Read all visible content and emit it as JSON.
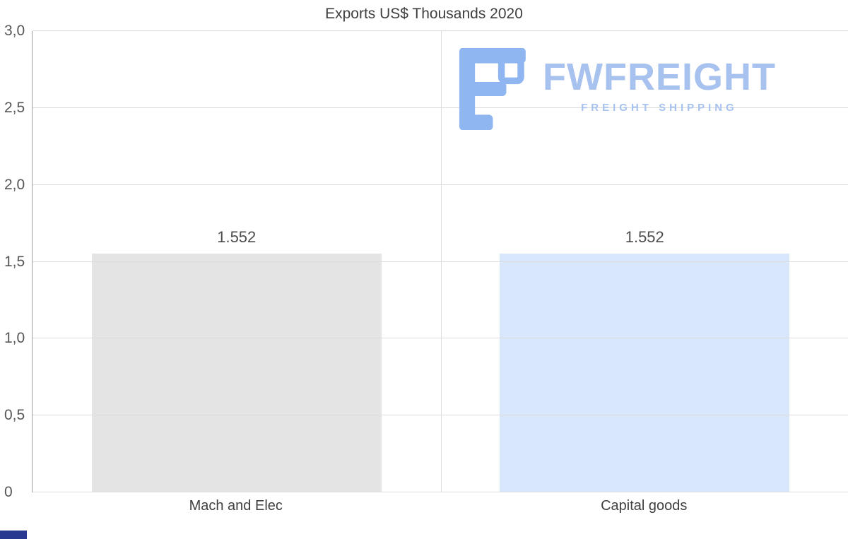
{
  "title": "Exports US$ Thousands 2020",
  "logo": {
    "word": "FWFREIGHT",
    "tagline": "FREIGHT SHIPPING",
    "color": "#a7c2ee",
    "mark_color": "#8fb6f0"
  },
  "colors": {
    "bar_gray": "#e4e4e4",
    "bar_blue": "#d8e7fb",
    "gridline": "#dcdcdc",
    "axis": "#9f9f9f",
    "corner_mark": "#2a3990"
  },
  "chart_data": {
    "type": "bar",
    "title": "Exports US$ Thousands 2020",
    "categories": [
      "Mach and Elec",
      "Capital goods"
    ],
    "values": [
      1.552,
      1.552
    ],
    "value_labels": [
      "1.552",
      "1.552"
    ],
    "bar_colors": [
      "#e4e4e4",
      "#d8e7fb"
    ],
    "xlabel": "",
    "ylabel": "",
    "ylim": [
      0,
      3
    ],
    "yticks": [
      {
        "v": 0,
        "label": "0"
      },
      {
        "v": 0.5,
        "label": "0,5"
      },
      {
        "v": 1,
        "label": "1,0"
      },
      {
        "v": 1.5,
        "label": "1,5"
      },
      {
        "v": 2,
        "label": "2,0"
      },
      {
        "v": 2.5,
        "label": "2,5"
      },
      {
        "v": 3,
        "label": "3,0"
      }
    ],
    "grid": true,
    "legend_position": "none"
  }
}
